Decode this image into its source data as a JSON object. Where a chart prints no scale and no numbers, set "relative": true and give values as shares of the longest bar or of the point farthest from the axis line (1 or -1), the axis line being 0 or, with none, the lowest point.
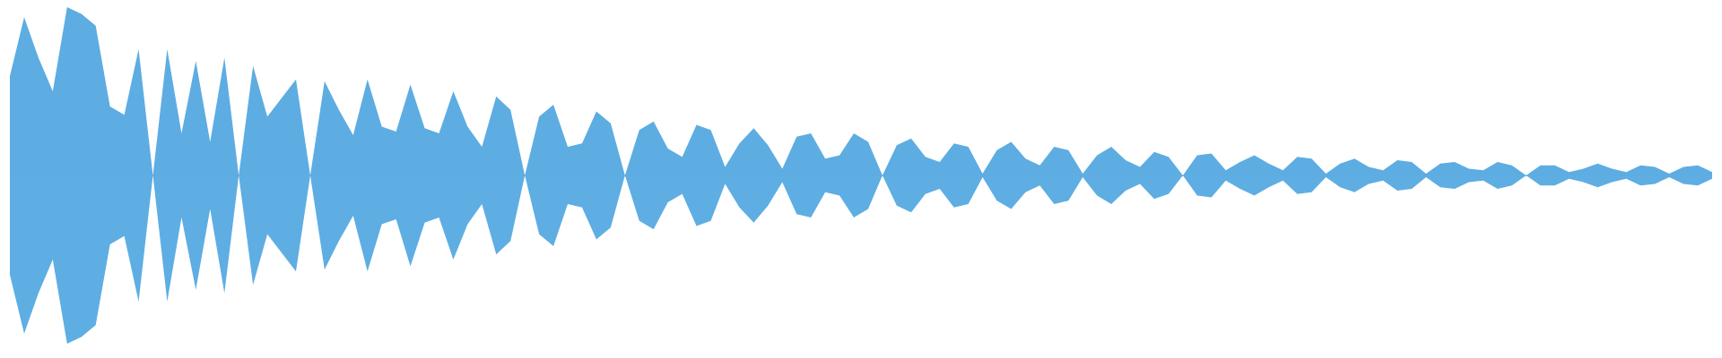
{
  "chart_data": {
    "type": "area",
    "relative": true,
    "grid": false,
    "marker": "none",
    "ref_lines": [
      {
        "axis": "y",
        "value": 0,
        "color": "#5dade2"
      }
    ],
    "categories": [
      null,
      null,
      null,
      null,
      null,
      null,
      null,
      null,
      null,
      null,
      null,
      null,
      null,
      null,
      null,
      null,
      null,
      null,
      null,
      null,
      null,
      null,
      null,
      null,
      null,
      null,
      null,
      null,
      null,
      null,
      null,
      null,
      null,
      null,
      null,
      null,
      null,
      null,
      null,
      null,
      null,
      null,
      null,
      null,
      null,
      null,
      null,
      null,
      null,
      null,
      null,
      null,
      null,
      null,
      null,
      null,
      null,
      null,
      null,
      null,
      null,
      null,
      null,
      null,
      null,
      null,
      null,
      null,
      null,
      null,
      null,
      null,
      null,
      null,
      null,
      null,
      null,
      null,
      null,
      null,
      null,
      null,
      null,
      null,
      null,
      null,
      null,
      null,
      null,
      null,
      null,
      null,
      null,
      null,
      null,
      null,
      null,
      null,
      null,
      null,
      null,
      null,
      null,
      null,
      null,
      null,
      null,
      null,
      null,
      null,
      null,
      null,
      null,
      null,
      null,
      null,
      null,
      null,
      null,
      null
    ],
    "series": [
      {
        "color": "#5dade2",
        "values": [
          0.59,
          0.94,
          0.7,
          0.5,
          1,
          0.96,
          0.89,
          0.41,
          0.36,
          0.75,
          0,
          0.75,
          0.25,
          0.68,
          0.2,
          0.7,
          0,
          0.65,
          0.35,
          0.46,
          0.57,
          0,
          0.56,
          0.39,
          0.24,
          0.57,
          0.29,
          0.26,
          0.54,
          0.28,
          0.25,
          0.5,
          0.29,
          0.17,
          0.47,
          0.39,
          0,
          0.35,
          0.42,
          0.17,
          0.19,
          0.38,
          0.31,
          0,
          0.27,
          0.32,
          0.16,
          0.11,
          0.3,
          0.27,
          0.05,
          0.19,
          0.28,
          0.18,
          0.04,
          0.23,
          0.25,
          0.1,
          0.12,
          0.25,
          0.2,
          0,
          0.18,
          0.22,
          0.11,
          0.08,
          0.19,
          0.17,
          0.01,
          0.15,
          0.2,
          0.1,
          0.06,
          0.17,
          0.15,
          0.01,
          0.12,
          0.17,
          0.09,
          0.05,
          0.14,
          0.11,
          0,
          0.12,
          0.13,
          0.03,
          0.08,
          0.12,
          0.07,
          0.03,
          0.11,
          0.1,
          0.01,
          0.07,
          0.1,
          0.05,
          0.03,
          0.09,
          0.08,
          0.01,
          0.07,
          0.08,
          0.04,
          0.03,
          0.08,
          0.06,
          0,
          0.06,
          0.06,
          0.02,
          0.04,
          0.07,
          0.04,
          0.02,
          0.06,
          0.05,
          0.01,
          0.05,
          0.06,
          0.02
        ]
      },
      {
        "color": "#5eaee3",
        "values": [
          -0.59,
          -0.94,
          -0.7,
          -0.5,
          -1,
          -0.96,
          -0.89,
          -0.41,
          -0.36,
          -0.75,
          0,
          -0.75,
          -0.25,
          -0.68,
          -0.2,
          -0.7,
          0,
          -0.65,
          -0.35,
          -0.46,
          -0.57,
          0,
          -0.56,
          -0.39,
          -0.24,
          -0.57,
          -0.29,
          -0.26,
          -0.54,
          -0.28,
          -0.25,
          -0.5,
          -0.29,
          -0.17,
          -0.47,
          -0.39,
          0,
          -0.35,
          -0.42,
          -0.17,
          -0.19,
          -0.38,
          -0.31,
          0,
          -0.27,
          -0.32,
          -0.16,
          -0.11,
          -0.3,
          -0.27,
          -0.05,
          -0.19,
          -0.28,
          -0.18,
          -0.04,
          -0.23,
          -0.25,
          -0.1,
          -0.12,
          -0.25,
          -0.2,
          0,
          -0.18,
          -0.22,
          -0.11,
          -0.08,
          -0.19,
          -0.17,
          -0.01,
          -0.15,
          -0.2,
          -0.1,
          -0.06,
          -0.17,
          -0.15,
          -0.01,
          -0.12,
          -0.17,
          -0.09,
          -0.05,
          -0.14,
          -0.11,
          0,
          -0.12,
          -0.13,
          -0.03,
          -0.08,
          -0.12,
          -0.07,
          -0.03,
          -0.11,
          -0.1,
          -0.01,
          -0.07,
          -0.1,
          -0.05,
          -0.03,
          -0.09,
          -0.08,
          -0.01,
          -0.07,
          -0.08,
          -0.04,
          -0.03,
          -0.08,
          -0.06,
          0,
          -0.06,
          -0.06,
          -0.02,
          -0.04,
          -0.07,
          -0.04,
          -0.02,
          -0.06,
          -0.05,
          -0.01,
          -0.05,
          -0.06,
          -0.02
        ]
      }
    ]
  }
}
